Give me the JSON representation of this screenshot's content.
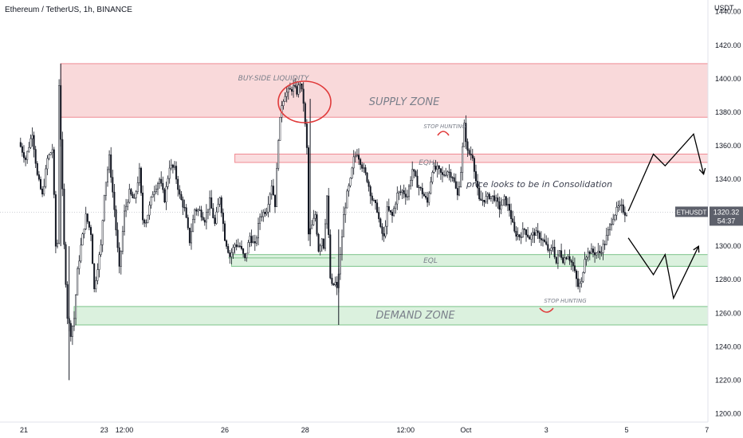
{
  "chart_data": {
    "type": "candlestick",
    "title": "Ethereum / TetherUS, 1h, BINANCE",
    "ylabel": "USDT",
    "ylim": [
      1195,
      1447
    ],
    "yticks": [
      1200,
      1220,
      1240,
      1260,
      1280,
      1300,
      1320,
      1340,
      1360,
      1380,
      1400,
      1420,
      1440
    ],
    "xticks": [
      {
        "label": "21",
        "x": 0
      },
      {
        "label": "23",
        "x": 48
      },
      {
        "label": "12:00",
        "x": 60
      },
      {
        "label": "26",
        "x": 120
      },
      {
        "label": "28",
        "x": 168
      },
      {
        "label": "12:00",
        "x": 228
      },
      {
        "label": "Oct",
        "x": 264
      },
      {
        "label": "3",
        "x": 312
      },
      {
        "label": "5",
        "x": 360
      },
      {
        "label": "7",
        "x": 408
      }
    ],
    "price_path": [
      [
        -2,
        1362
      ],
      [
        2,
        1352
      ],
      [
        6,
        1368
      ],
      [
        9,
        1342
      ],
      [
        12,
        1330
      ],
      [
        15,
        1352
      ],
      [
        18,
        1358
      ],
      [
        20,
        1300
      ],
      [
        21,
        1302
      ],
      [
        22,
        1397
      ],
      [
        25,
        1300
      ],
      [
        27,
        1258
      ],
      [
        29,
        1248
      ],
      [
        31,
        1257
      ],
      [
        33,
        1285
      ],
      [
        35,
        1300
      ],
      [
        38,
        1318
      ],
      [
        41,
        1308
      ],
      [
        43,
        1274
      ],
      [
        45,
        1288
      ],
      [
        47,
        1300
      ],
      [
        49,
        1332
      ],
      [
        52,
        1353
      ],
      [
        55,
        1322
      ],
      [
        58,
        1286
      ],
      [
        61,
        1320
      ],
      [
        64,
        1332
      ],
      [
        67,
        1327
      ],
      [
        70,
        1345
      ],
      [
        72,
        1316
      ],
      [
        74,
        1315
      ],
      [
        78,
        1332
      ],
      [
        82,
        1340
      ],
      [
        85,
        1328
      ],
      [
        88,
        1348
      ],
      [
        91,
        1346
      ],
      [
        94,
        1330
      ],
      [
        97,
        1322
      ],
      [
        100,
        1303
      ],
      [
        103,
        1322
      ],
      [
        106,
        1321
      ],
      [
        109,
        1316
      ],
      [
        112,
        1327
      ],
      [
        115,
        1313
      ],
      [
        118,
        1330
      ],
      [
        121,
        1305
      ],
      [
        124,
        1294
      ],
      [
        127,
        1301
      ],
      [
        130,
        1300
      ],
      [
        133,
        1292
      ],
      [
        136,
        1306
      ],
      [
        139,
        1300
      ],
      [
        142,
        1318
      ],
      [
        146,
        1322
      ],
      [
        149,
        1337
      ],
      [
        151,
        1325
      ],
      [
        153,
        1365
      ],
      [
        155,
        1385
      ],
      [
        157,
        1391
      ],
      [
        160,
        1393
      ],
      [
        162,
        1395
      ],
      [
        164,
        1392
      ],
      [
        166,
        1398
      ],
      [
        168,
        1386
      ],
      [
        170,
        1358
      ],
      [
        171,
        1307
      ],
      [
        173,
        1312
      ],
      [
        175,
        1319
      ],
      [
        177,
        1298
      ],
      [
        179,
        1305
      ],
      [
        180,
        1300
      ],
      [
        182,
        1330
      ],
      [
        184,
        1281
      ],
      [
        185,
        1276
      ],
      [
        187,
        1278
      ],
      [
        188,
        1274
      ],
      [
        190,
        1294
      ],
      [
        192,
        1318
      ],
      [
        194,
        1331
      ],
      [
        196,
        1339
      ],
      [
        198,
        1352
      ],
      [
        200,
        1356
      ],
      [
        203,
        1348
      ],
      [
        206,
        1340
      ],
      [
        209,
        1328
      ],
      [
        212,
        1322
      ],
      [
        214,
        1310
      ],
      [
        216,
        1305
      ],
      [
        218,
        1322
      ],
      [
        221,
        1318
      ],
      [
        224,
        1331
      ],
      [
        227,
        1333
      ],
      [
        230,
        1330
      ],
      [
        233,
        1346
      ],
      [
        236,
        1337
      ],
      [
        239,
        1332
      ],
      [
        242,
        1326
      ],
      [
        245,
        1346
      ],
      [
        248,
        1346
      ],
      [
        251,
        1342
      ],
      [
        254,
        1345
      ],
      [
        257,
        1342
      ],
      [
        260,
        1330
      ],
      [
        262,
        1345
      ],
      [
        264,
        1372
      ],
      [
        266,
        1356
      ],
      [
        269,
        1354
      ],
      [
        271,
        1339
      ],
      [
        273,
        1327
      ],
      [
        276,
        1328
      ],
      [
        279,
        1330
      ],
      [
        282,
        1329
      ],
      [
        285,
        1323
      ],
      [
        288,
        1328
      ],
      [
        291,
        1322
      ],
      [
        294,
        1308
      ],
      [
        297,
        1306
      ],
      [
        300,
        1310
      ],
      [
        303,
        1305
      ],
      [
        306,
        1308
      ],
      [
        309,
        1306
      ],
      [
        312,
        1302
      ],
      [
        315,
        1296
      ],
      [
        317,
        1300
      ],
      [
        319,
        1290
      ],
      [
        321,
        1297
      ],
      [
        323,
        1292
      ],
      [
        326,
        1295
      ],
      [
        329,
        1288
      ],
      [
        332,
        1276
      ],
      [
        334,
        1278
      ],
      [
        336,
        1294
      ],
      [
        339,
        1297
      ],
      [
        342,
        1296
      ],
      [
        345,
        1296
      ],
      [
        348,
        1302
      ],
      [
        351,
        1312
      ],
      [
        353,
        1318
      ],
      [
        356,
        1323
      ],
      [
        358,
        1323
      ],
      [
        360,
        1320
      ]
    ],
    "zones": [
      {
        "name": "supply",
        "label": "SUPPLY ZONE",
        "x_from": 22,
        "x_to": 428,
        "y_from": 1377,
        "y_to": 1409
      },
      {
        "name": "eqh",
        "label": "EQH",
        "x_from": 126,
        "x_to": 428,
        "y_from": 1350,
        "y_to": 1355
      },
      {
        "name": "eql",
        "label": "EQL",
        "x_from": 124,
        "x_to": 428,
        "y_from": 1288,
        "y_to": 1295
      },
      {
        "name": "demand",
        "label": "DEMAND ZONE",
        "x_from": 30,
        "x_to": 428,
        "y_from": 1253,
        "y_to": 1264
      }
    ],
    "eql_line": {
      "x_from": 122,
      "x_to": 186,
      "y": 1293
    },
    "annotations": [
      {
        "label": "BUY-SIDE LIQUIDITY",
        "x": 158,
        "y": 1401
      },
      {
        "label": "STOP HUNTING",
        "x": 264,
        "y": 1375
      },
      {
        "label": "STOP HUNTING",
        "x": 341,
        "y": 1265
      },
      {
        "label": "price looks to be in Consolidation",
        "x": 325,
        "y": 1340
      }
    ],
    "up_path": [
      [
        361,
        1321
      ],
      [
        376,
        1355
      ],
      [
        383,
        1348
      ],
      [
        400,
        1367
      ],
      [
        406,
        1343
      ]
    ],
    "down_path": [
      [
        361,
        1305
      ],
      [
        376,
        1283
      ],
      [
        383,
        1295
      ],
      [
        388,
        1269
      ],
      [
        403,
        1300
      ]
    ],
    "current_price": {
      "symbol": "ETHUSDT",
      "price": "1320.32",
      "countdown": "54:37",
      "value": 1320.32
    },
    "colors": {
      "up": "#131722",
      "down": "#131722",
      "supply_fill": "#f8d2d4",
      "supply_edge": "#f08a92",
      "demand_fill": "#d5eed8",
      "demand_edge": "#7cc48a",
      "circle": "#e03a3a",
      "arrows": "#000000"
    }
  }
}
